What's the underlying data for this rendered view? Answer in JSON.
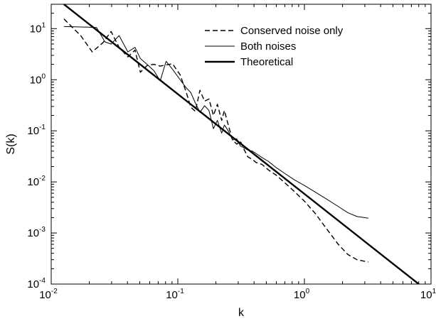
{
  "chart_data": {
    "type": "line",
    "title": "",
    "xlabel": "k",
    "ylabel": "S(k)",
    "xscale": "log",
    "yscale": "log",
    "xlim": [
      0.01,
      10
    ],
    "ylim": [
      0.0001,
      30
    ],
    "grid": false,
    "legend_position": "top-right",
    "x_ticks": [
      {
        "value": 0.01,
        "base": "10",
        "exp": "-2"
      },
      {
        "value": 0.1,
        "base": "10",
        "exp": "-1"
      },
      {
        "value": 1,
        "base": "10",
        "exp": "0"
      },
      {
        "value": 10,
        "base": "10",
        "exp": "1"
      }
    ],
    "y_ticks": [
      {
        "value": 0.0001,
        "base": "10",
        "exp": "-4"
      },
      {
        "value": 0.001,
        "base": "10",
        "exp": "-3"
      },
      {
        "value": 0.01,
        "base": "10",
        "exp": "-2"
      },
      {
        "value": 0.1,
        "base": "10",
        "exp": "-1"
      },
      {
        "value": 1,
        "base": "10",
        "exp": "0"
      },
      {
        "value": 10,
        "base": "10",
        "exp": "1"
      }
    ],
    "series": [
      {
        "name": "Conserved noise only",
        "style": "dashed",
        "color": "#000000",
        "points": [
          [
            0.0126,
            15.5
          ],
          [
            0.0171,
            7.3
          ],
          [
            0.0211,
            3.5
          ],
          [
            0.0256,
            5.3
          ],
          [
            0.0297,
            8.8
          ],
          [
            0.0344,
            4.3
          ],
          [
            0.0403,
            2.8
          ],
          [
            0.0459,
            3.8
          ],
          [
            0.0506,
            1.4
          ],
          [
            0.0572,
            1.9
          ],
          [
            0.0648,
            2.0
          ],
          [
            0.0726,
            1.85
          ],
          [
            0.0808,
            1.95
          ],
          [
            0.0908,
            2.05
          ],
          [
            0.1043,
            1.25
          ],
          [
            0.1162,
            0.58
          ],
          [
            0.1267,
            0.29
          ],
          [
            0.1376,
            0.24
          ],
          [
            0.1495,
            0.62
          ],
          [
            0.1628,
            0.38
          ],
          [
            0.1763,
            0.42
          ],
          [
            0.1911,
            0.2
          ],
          [
            0.2054,
            0.33
          ],
          [
            0.2221,
            0.16
          ],
          [
            0.2333,
            0.25
          ],
          [
            0.2503,
            0.13
          ],
          [
            0.2707,
            0.066
          ],
          [
            0.2921,
            0.055
          ],
          [
            0.3127,
            0.062
          ],
          [
            0.3371,
            0.041
          ],
          [
            0.3569,
            0.031
          ],
          [
            0.3882,
            0.0275
          ],
          [
            0.4148,
            0.024
          ],
          [
            0.4623,
            0.022
          ],
          [
            0.5219,
            0.017
          ],
          [
            0.5993,
            0.0135
          ],
          [
            0.7036,
            0.0095
          ],
          [
            0.8325,
            0.0065
          ],
          [
            1.0,
            0.0042
          ],
          [
            1.22,
            0.0024
          ],
          [
            1.5,
            0.0012
          ],
          [
            1.85,
            0.0006
          ],
          [
            2.2,
            0.00038
          ],
          [
            2.6,
            0.0003
          ],
          [
            3.2,
            0.00027
          ]
        ]
      },
      {
        "name": "Both noises",
        "style": "solid-thin",
        "color": "#000000",
        "points": [
          [
            0.0126,
            11.0
          ],
          [
            0.0197,
            10.7
          ],
          [
            0.0228,
            10.5
          ],
          [
            0.0266,
            5.5
          ],
          [
            0.0297,
            5.0
          ],
          [
            0.0344,
            7.3
          ],
          [
            0.0403,
            3.5
          ],
          [
            0.0459,
            4.3
          ],
          [
            0.0506,
            2.6
          ],
          [
            0.0572,
            2.0
          ],
          [
            0.0648,
            1.5
          ],
          [
            0.0726,
            0.95
          ],
          [
            0.0808,
            2.3
          ],
          [
            0.0908,
            1.6
          ],
          [
            0.1043,
            1.0
          ],
          [
            0.1162,
            0.7
          ],
          [
            0.1267,
            0.56
          ],
          [
            0.1376,
            0.35
          ],
          [
            0.1495,
            0.23
          ],
          [
            0.1628,
            0.31
          ],
          [
            0.1763,
            0.25
          ],
          [
            0.1911,
            0.11
          ],
          [
            0.2054,
            0.16
          ],
          [
            0.2221,
            0.09
          ],
          [
            0.2333,
            0.13
          ],
          [
            0.2503,
            0.1
          ],
          [
            0.2707,
            0.066
          ],
          [
            0.2921,
            0.07
          ],
          [
            0.3127,
            0.05
          ],
          [
            0.3371,
            0.046
          ],
          [
            0.3569,
            0.042
          ],
          [
            0.3882,
            0.04
          ],
          [
            0.4148,
            0.036
          ],
          [
            0.4623,
            0.03
          ],
          [
            0.5219,
            0.025
          ],
          [
            0.5993,
            0.019
          ],
          [
            0.7036,
            0.0145
          ],
          [
            0.8325,
            0.011
          ],
          [
            1.0,
            0.0085
          ],
          [
            1.22,
            0.0063
          ],
          [
            1.5,
            0.0046
          ],
          [
            1.85,
            0.0033
          ],
          [
            2.2,
            0.0025
          ],
          [
            2.6,
            0.0021
          ],
          [
            3.2,
            0.00195
          ]
        ]
      },
      {
        "name": "Theoretical",
        "style": "solid-thick",
        "color": "#000000",
        "points": [
          [
            0.0126,
            30.0
          ],
          [
            8.0,
            0.0001
          ]
        ]
      }
    ]
  }
}
